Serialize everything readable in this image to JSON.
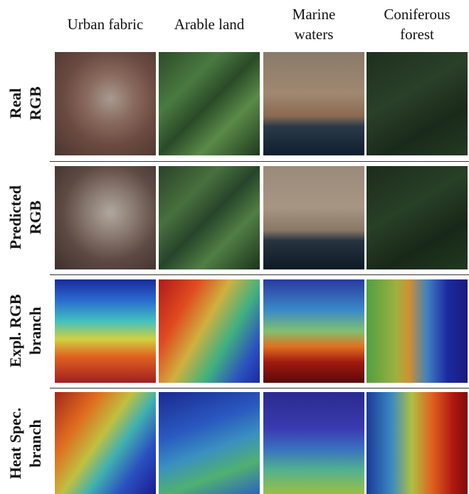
{
  "figure": {
    "columns": [
      [
        "Urban fabric"
      ],
      [
        "Arable land"
      ],
      [
        "Marine",
        "waters"
      ],
      [
        "Coniferous",
        "forest"
      ]
    ],
    "rows": [
      [
        "Real",
        "RGB"
      ],
      [
        "Predicted",
        "RGB"
      ],
      [
        "Expl. RGB",
        "branch"
      ],
      [
        "Heat Spec.",
        "branch"
      ]
    ]
  }
}
